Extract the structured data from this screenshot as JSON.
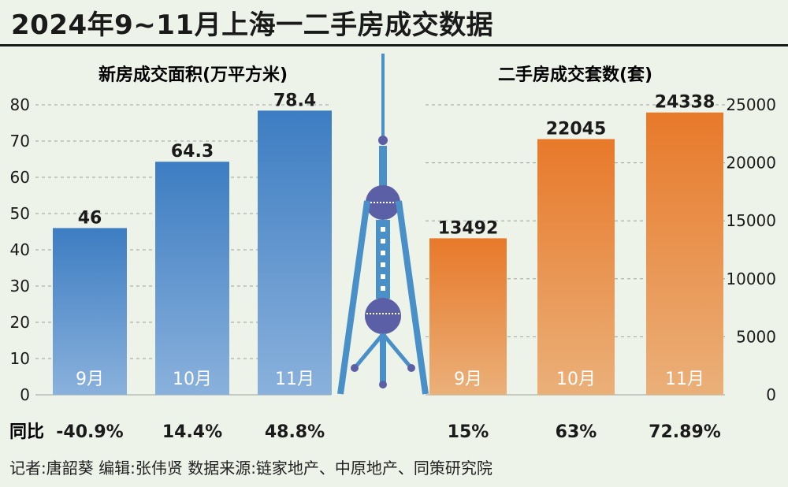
{
  "title": "2024年9~11月上海一二手房成交数据",
  "yoy_label": "同比",
  "footer": "记者:唐韶葵  编辑:张伟贤  数据来源:链家地产、中原地产、同策研究院",
  "colors": {
    "blue_top": "#3d7dc2",
    "blue_bottom": "#8ab1dc",
    "orange_top": "#e8792a",
    "orange_bottom": "#eab079",
    "tower": "#4a90c8",
    "tower_sphere": "#5b5fa6"
  },
  "chart_data": [
    {
      "type": "bar",
      "title": "新房成交面积(万平方米)",
      "categories": [
        "9月",
        "10月",
        "11月"
      ],
      "values": [
        46,
        64.3,
        78.4
      ],
      "value_labels": [
        "46",
        "64.3",
        "78.4"
      ],
      "yoy": [
        "-40.9%",
        "14.4%",
        "48.8%"
      ],
      "ylim": [
        0,
        80
      ],
      "yticks": [
        "0",
        "10",
        "20",
        "30",
        "40",
        "50",
        "60",
        "70",
        "80"
      ],
      "axis_side": "left",
      "grid": true
    },
    {
      "type": "bar",
      "title": "二手房成交套数(套)",
      "categories": [
        "9月",
        "10月",
        "11月"
      ],
      "values": [
        13492,
        22045,
        24338
      ],
      "value_labels": [
        "13492",
        "22045",
        "24338"
      ],
      "yoy": [
        "15%",
        "63%",
        "72.89%"
      ],
      "ylim": [
        0,
        25000
      ],
      "yticks": [
        "0",
        "5000",
        "10000",
        "15000",
        "20000",
        "25000"
      ],
      "axis_side": "right",
      "grid": true
    }
  ]
}
